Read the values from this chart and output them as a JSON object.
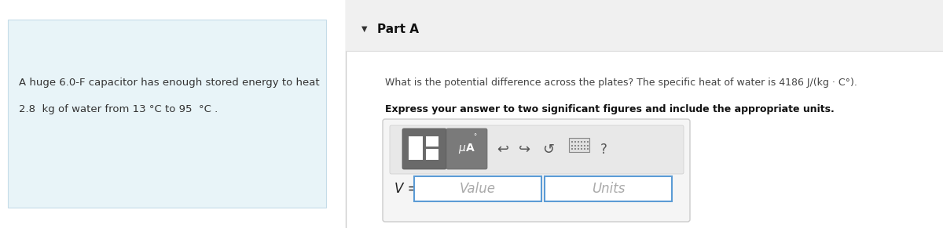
{
  "bg_color": "#ffffff",
  "left_panel_bg": "#e8f4f8",
  "left_panel_border": "#c5dce8",
  "left_panel_text_line1": "A huge 6.0-F capacitor has enough stored energy to heat",
  "left_panel_text_line2": "2.8  kg of water from 13 °C to 95  °C .",
  "divider_color": "#cccccc",
  "part_a_header_bg": "#f0f0f0",
  "part_a_header_border": "#dddddd",
  "part_a_label": "Part A",
  "triangle": "▼",
  "question_text": "What is the potential difference across the plates? The specific heat of water is 4186 J/(kg · C°).",
  "bold_text": "Express your answer to two significant figures and include the appropriate units.",
  "input_outer_bg": "#f5f5f5",
  "input_outer_border": "#cccccc",
  "toolbar_bg": "#e8e8e8",
  "toolbar_border": "#cccccc",
  "btn1_bg": "#6a6a6a",
  "btn1_border": "#555555",
  "btn2_bg": "#7a7a7a",
  "btn2_border": "#666666",
  "value_label": "Value",
  "units_label": "Units",
  "v_equals": "V =",
  "field_border": "#5b9bd5",
  "field_bg": "#ffffff",
  "text_color": "#444444",
  "placeholder_color": "#aaaaaa"
}
